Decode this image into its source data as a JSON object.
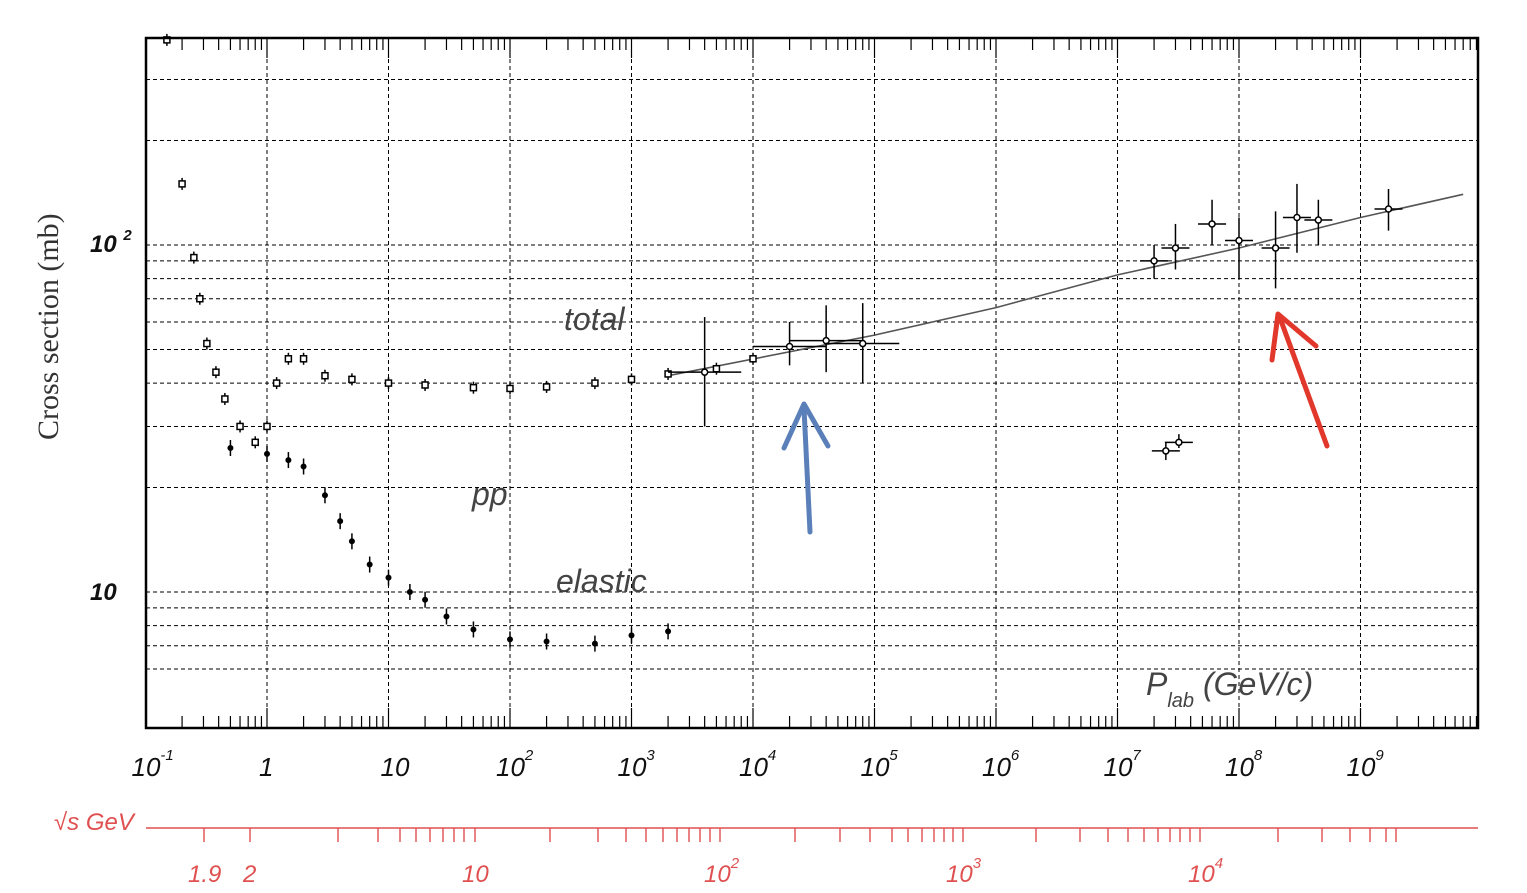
{
  "chart_data": {
    "type": "scatter",
    "title": "",
    "ylabel": "Cross section (mb)",
    "y_tick_labels": [
      "10",
      "10",
      "2"
    ],
    "x_tick_labels": [
      {
        "base": "10",
        "exp": "-1"
      },
      {
        "base": "1",
        "exp": ""
      },
      {
        "base": "10",
        "exp": ""
      },
      {
        "base": "10",
        "exp": "2"
      },
      {
        "base": "10",
        "exp": "3"
      },
      {
        "base": "10",
        "exp": "4"
      },
      {
        "base": "10",
        "exp": "5"
      },
      {
        "base": "10",
        "exp": "6"
      },
      {
        "base": "10",
        "exp": "7"
      },
      {
        "base": "10",
        "exp": "8"
      },
      {
        "base": "10",
        "exp": "9"
      }
    ],
    "x_scale": "log",
    "y_scale": "log",
    "xlim": [
      0.1,
      7000000000.0
    ],
    "ylim": [
      5.7,
      450
    ],
    "grid": true,
    "annotations": {
      "total": "total",
      "pp": "pp",
      "elastic": "elastic",
      "plab_main": "P",
      "plab_sub": "lab",
      "plab_units": " (GeV/c)"
    },
    "secondary_axis": {
      "label": "√s GeV",
      "color": "#e05050",
      "tick_labels": [
        {
          "base": "1.9",
          "exp": ""
        },
        {
          "base": "2",
          "exp": ""
        },
        {
          "base": "10",
          "exp": ""
        },
        {
          "base": "10",
          "exp": "2"
        },
        {
          "base": "10",
          "exp": "3"
        },
        {
          "base": "10",
          "exp": "4"
        }
      ]
    },
    "arrow_colors": {
      "blue": "#5b7fb8",
      "red": "#e2382c"
    },
    "series": [
      {
        "name": "total",
        "marker": "open-square",
        "points": [
          {
            "x": 0.15,
            "y": 390
          },
          {
            "x": 0.2,
            "y": 150
          },
          {
            "x": 0.25,
            "y": 92
          },
          {
            "x": 0.28,
            "y": 70
          },
          {
            "x": 0.32,
            "y": 52
          },
          {
            "x": 0.38,
            "y": 43
          },
          {
            "x": 0.45,
            "y": 36
          },
          {
            "x": 0.6,
            "y": 30
          },
          {
            "x": 0.8,
            "y": 27
          },
          {
            "x": 1.0,
            "y": 30
          },
          {
            "x": 1.2,
            "y": 40
          },
          {
            "x": 1.5,
            "y": 47
          },
          {
            "x": 2.0,
            "y": 47
          },
          {
            "x": 3.0,
            "y": 42
          },
          {
            "x": 5.0,
            "y": 41
          },
          {
            "x": 10,
            "y": 40
          },
          {
            "x": 20,
            "y": 39.5
          },
          {
            "x": 50,
            "y": 38.8
          },
          {
            "x": 100,
            "y": 38.6
          },
          {
            "x": 200,
            "y": 39
          },
          {
            "x": 500,
            "y": 40
          },
          {
            "x": 1000,
            "y": 41
          },
          {
            "x": 2000,
            "y": 42.5
          },
          {
            "x": 5000,
            "y": 44
          },
          {
            "x": 10000,
            "y": 47
          }
        ]
      },
      {
        "name": "elastic",
        "marker": "dot",
        "points": [
          {
            "x": 0.5,
            "y": 26
          },
          {
            "x": 1.0,
            "y": 25
          },
          {
            "x": 1.5,
            "y": 24
          },
          {
            "x": 2.0,
            "y": 23
          },
          {
            "x": 3.0,
            "y": 19
          },
          {
            "x": 4.0,
            "y": 16
          },
          {
            "x": 5.0,
            "y": 14
          },
          {
            "x": 7.0,
            "y": 12
          },
          {
            "x": 10,
            "y": 11
          },
          {
            "x": 15,
            "y": 10
          },
          {
            "x": 20,
            "y": 9.5
          },
          {
            "x": 30,
            "y": 8.5
          },
          {
            "x": 50,
            "y": 7.8
          },
          {
            "x": 100,
            "y": 7.3
          },
          {
            "x": 200,
            "y": 7.2
          },
          {
            "x": 500,
            "y": 7.1
          },
          {
            "x": 1000,
            "y": 7.5
          },
          {
            "x": 2000,
            "y": 7.7
          }
        ]
      },
      {
        "name": "cosmic-total",
        "marker": "open-circle-errorbar",
        "points": [
          {
            "x": 4000,
            "y": 43,
            "yerr": [
              30,
              62
            ],
            "xerr": [
              2000,
              8000
            ]
          },
          {
            "x": 20000,
            "y": 51,
            "yerr": [
              45,
              60
            ],
            "xerr": [
              10000,
              40000
            ]
          },
          {
            "x": 40000,
            "y": 53,
            "yerr": [
              43,
              67
            ],
            "xerr": [
              20000,
              80000
            ]
          },
          {
            "x": 80000,
            "y": 52,
            "yerr": [
              40,
              68
            ],
            "xerr": [
              40000,
              160000
            ]
          },
          {
            "x": 20000000.0,
            "y": 90,
            "yerr": [
              80,
              100
            ]
          },
          {
            "x": 30000000.0,
            "y": 98,
            "yerr": [
              85,
              115
            ]
          },
          {
            "x": 60000000.0,
            "y": 115,
            "yerr": [
              100,
              135
            ]
          },
          {
            "x": 100000000.0,
            "y": 103,
            "yerr": [
              80,
              120
            ]
          },
          {
            "x": 200000000.0,
            "y": 98,
            "yerr": [
              75,
              125
            ]
          },
          {
            "x": 300000000.0,
            "y": 120,
            "yerr": [
              95,
              150
            ]
          },
          {
            "x": 450000000.0,
            "y": 118,
            "yerr": [
              100,
              135
            ]
          },
          {
            "x": 1700000000.0,
            "y": 127,
            "yerr": [
              110,
              145
            ]
          },
          {
            "x": 25000000.0,
            "y": 25.5,
            "yerr": [
              24,
              27
            ]
          },
          {
            "x": 32000000.0,
            "y": 27,
            "yerr": [
              26,
              28.5
            ]
          }
        ]
      },
      {
        "name": "fit",
        "marker": "line",
        "points": [
          {
            "x": 2000,
            "y": 42
          },
          {
            "x": 100000.0,
            "y": 55
          },
          {
            "x": 1000000.0,
            "y": 66
          },
          {
            "x": 10000000.0,
            "y": 82
          },
          {
            "x": 100000000.0,
            "y": 98
          },
          {
            "x": 1000000000.0,
            "y": 120
          },
          {
            "x": 7000000000.0,
            "y": 140
          }
        ]
      }
    ]
  }
}
